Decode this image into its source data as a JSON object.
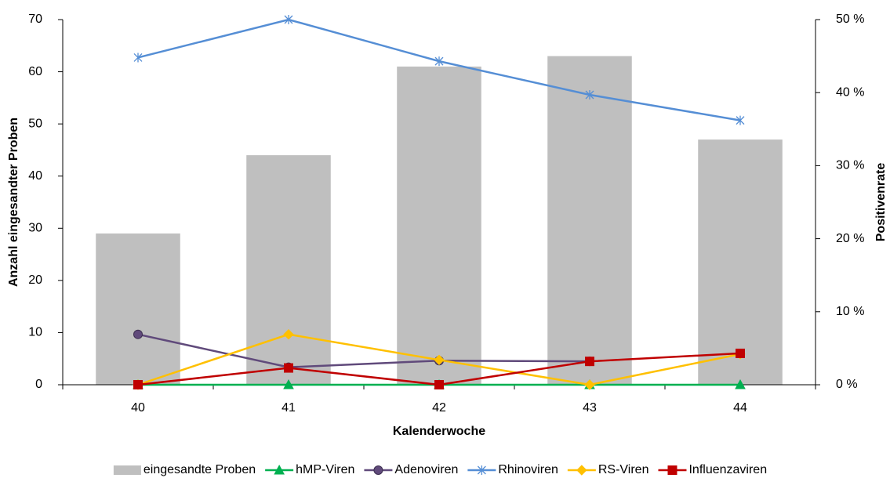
{
  "chart_data": {
    "type": "bar",
    "x_label": "Kalenderwoche",
    "y_label": "Anzahl eingesandter Proben",
    "y2_label": "Positivenrate",
    "categories": [
      "40",
      "41",
      "42",
      "43",
      "44"
    ],
    "ylim": [
      0,
      70
    ],
    "yticks": [
      0,
      10,
      20,
      30,
      40,
      50,
      60,
      70
    ],
    "y2lim": [
      0,
      50
    ],
    "y2ticks": [
      {
        "value": 0,
        "label": "0 %"
      },
      {
        "value": 10,
        "label": "10 %"
      },
      {
        "value": 20,
        "label": "20 %"
      },
      {
        "value": 30,
        "label": "30 %"
      },
      {
        "value": 40,
        "label": "40 %"
      },
      {
        "value": 50,
        "label": "50 %"
      }
    ],
    "legend": "bottom",
    "series": [
      {
        "name": "eingesandte Proben",
        "type": "bar",
        "color": "#bfbfbf",
        "values": [
          29,
          44,
          61,
          63,
          47
        ]
      },
      {
        "name": "hMP-Viren",
        "type": "line",
        "axis": "y2",
        "marker": "triangle",
        "color": "#00b050",
        "values": [
          0,
          0,
          0,
          0,
          0
        ]
      },
      {
        "name": "Adenoviren",
        "type": "line",
        "axis": "y2",
        "marker": "circle",
        "color": "#604a7b",
        "values": [
          6.9,
          2.4,
          3.3,
          3.2,
          null
        ]
      },
      {
        "name": "Rhinoviren",
        "type": "line",
        "axis": "y2",
        "marker": "star",
        "color": "#558ed5",
        "values": [
          44.8,
          50,
          44.3,
          39.7,
          36.2
        ]
      },
      {
        "name": "RS-Viren",
        "type": "line",
        "axis": "y2",
        "marker": "diamond",
        "color": "#ffc000",
        "values": [
          0,
          6.9,
          3.4,
          0,
          4.2
        ]
      },
      {
        "name": "Influenzaviren",
        "type": "line",
        "axis": "y2",
        "marker": "square",
        "color": "#c00000",
        "values": [
          0,
          2.3,
          0,
          3.2,
          4.3
        ]
      }
    ]
  }
}
